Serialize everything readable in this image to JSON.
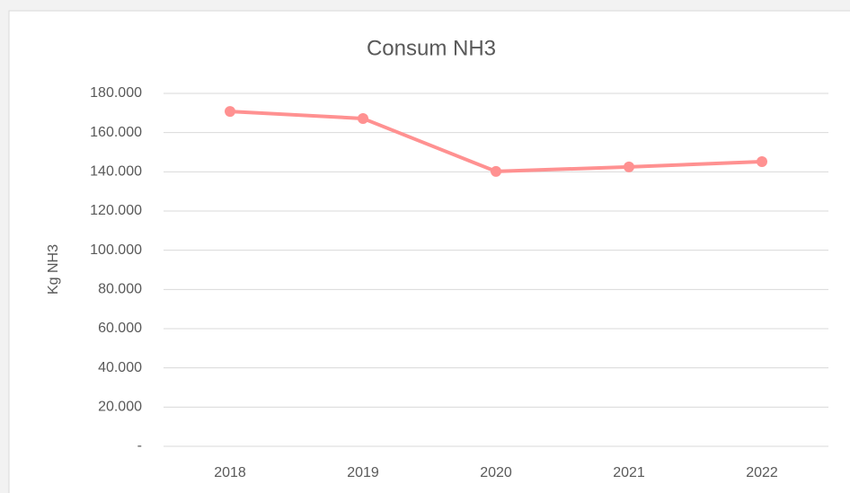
{
  "chart_data": {
    "type": "line",
    "title": "Consum NH3",
    "y_label": "Kg NH3",
    "categories": [
      "2018",
      "2019",
      "2020",
      "2021",
      "2022"
    ],
    "series": [
      {
        "name": "Consum NH3",
        "color": "#ff9191",
        "values": [
          170800,
          167200,
          140200,
          142500,
          145200
        ]
      }
    ],
    "ylim": [
      0,
      180000
    ],
    "yticks": [
      {
        "value": 0,
        "label": "-"
      },
      {
        "value": 20000,
        "label": "20.000"
      },
      {
        "value": 40000,
        "label": "40.000"
      },
      {
        "value": 60000,
        "label": "60.000"
      },
      {
        "value": 80000,
        "label": "80.000"
      },
      {
        "value": 100000,
        "label": "100.000"
      },
      {
        "value": 120000,
        "label": "120.000"
      },
      {
        "value": 140000,
        "label": "140.000"
      },
      {
        "value": 160000,
        "label": "160.000"
      },
      {
        "value": 180000,
        "label": "180.000"
      }
    ],
    "grid": true
  }
}
